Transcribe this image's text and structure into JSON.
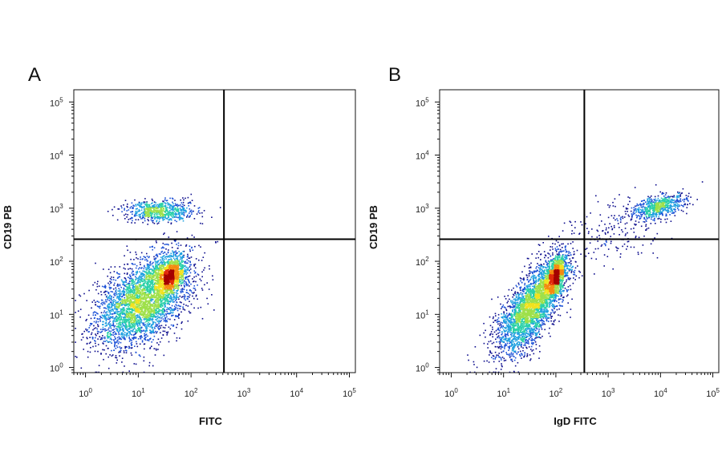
{
  "chart_data": [
    {
      "type": "scatter",
      "panel": "A",
      "xlabel": "FITC",
      "ylabel": "CD19 PB",
      "x_scale": "log",
      "y_scale": "log",
      "xlim": [
        0.6,
        130000
      ],
      "ylim": [
        0.8,
        170000
      ],
      "x_ticks": [
        1,
        10,
        100,
        1000,
        10000,
        100000
      ],
      "y_ticks": [
        1,
        10,
        100,
        1000,
        10000,
        100000
      ],
      "tick_labels": {
        "base": "10",
        "exponents": [
          "0",
          "1",
          "2",
          "3",
          "4",
          "5"
        ]
      },
      "quadrant_gate": {
        "x": 420,
        "y": 260
      },
      "populations": [
        {
          "name": "main",
          "cx": 12,
          "cy": 18,
          "sx": 0.45,
          "sy": 0.42,
          "rho": 0.45,
          "n": 3600
        },
        {
          "name": "hot-core",
          "cx": 38,
          "cy": 55,
          "sx": 0.15,
          "sy": 0.17,
          "rho": 0.3,
          "n": 1100
        },
        {
          "name": "cd19-high",
          "cx": 25,
          "cy": 900,
          "sx": 0.33,
          "sy": 0.1,
          "rho": 0.0,
          "n": 700
        }
      ],
      "colormap": [
        "#0b0b8c",
        "#1a4fd6",
        "#1fa0e0",
        "#2ad0a8",
        "#9ee04a",
        "#f2e21e",
        "#f58a10",
        "#e02a0a",
        "#a50000"
      ]
    },
    {
      "type": "scatter",
      "panel": "B",
      "xlabel": "IgD FITC",
      "ylabel": "CD19 PB",
      "x_scale": "log",
      "y_scale": "log",
      "xlim": [
        0.6,
        130000
      ],
      "ylim": [
        0.8,
        170000
      ],
      "x_ticks": [
        1,
        10,
        100,
        1000,
        10000,
        100000
      ],
      "y_ticks": [
        1,
        10,
        100,
        1000,
        10000,
        100000
      ],
      "tick_labels": {
        "base": "10",
        "exponents": [
          "0",
          "1",
          "2",
          "3",
          "4",
          "5"
        ]
      },
      "quadrant_gate": {
        "x": 350,
        "y": 260
      },
      "populations": [
        {
          "name": "main",
          "cx": 35,
          "cy": 15,
          "sx": 0.33,
          "sy": 0.45,
          "rho": 0.7,
          "n": 3200
        },
        {
          "name": "hot-core",
          "cx": 95,
          "cy": 55,
          "sx": 0.1,
          "sy": 0.2,
          "rho": 0.5,
          "n": 1000
        },
        {
          "name": "igd-high",
          "cx": 9000,
          "cy": 1100,
          "sx": 0.25,
          "sy": 0.12,
          "rho": 0.5,
          "n": 650
        },
        {
          "name": "transition",
          "cx": 1500,
          "cy": 400,
          "sx": 0.45,
          "sy": 0.35,
          "rho": 0.3,
          "n": 180
        }
      ],
      "colormap": [
        "#0b0b8c",
        "#1a4fd6",
        "#1fa0e0",
        "#2ad0a8",
        "#9ee04a",
        "#f2e21e",
        "#f58a10",
        "#e02a0a",
        "#a50000"
      ]
    }
  ]
}
